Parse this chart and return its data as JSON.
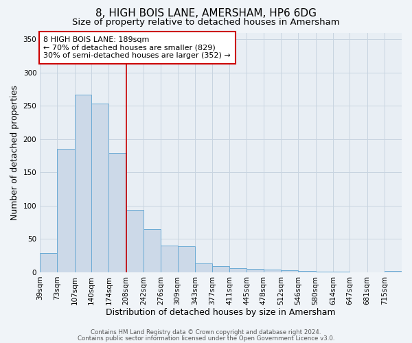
{
  "title": "8, HIGH BOIS LANE, AMERSHAM, HP6 6DG",
  "subtitle": "Size of property relative to detached houses in Amersham",
  "xlabel": "Distribution of detached houses by size in Amersham",
  "ylabel": "Number of detached properties",
  "bar_heights": [
    29,
    185,
    267,
    253,
    179,
    94,
    65,
    40,
    39,
    13,
    9,
    6,
    5,
    4,
    3,
    2,
    1,
    1,
    0,
    0,
    2
  ],
  "bin_edges": [
    39,
    73,
    107,
    140,
    174,
    208,
    242,
    276,
    309,
    343,
    377,
    411,
    445,
    478,
    512,
    546,
    580,
    614,
    647,
    681,
    715,
    749
  ],
  "xtick_labels": [
    "39sqm",
    "73sqm",
    "107sqm",
    "140sqm",
    "174sqm",
    "208sqm",
    "242sqm",
    "276sqm",
    "309sqm",
    "343sqm",
    "377sqm",
    "411sqm",
    "445sqm",
    "478sqm",
    "512sqm",
    "546sqm",
    "580sqm",
    "614sqm",
    "647sqm",
    "681sqm",
    "715sqm"
  ],
  "bar_facecolor": "#ccd9e8",
  "bar_edgecolor": "#6aaad4",
  "grid_color": "#c8d4e0",
  "plot_background": "#e8eef4",
  "fig_background": "#f0f4f8",
  "property_line_x": 208,
  "property_line_color": "#cc0000",
  "annotation_text": "8 HIGH BOIS LANE: 189sqm\n← 70% of detached houses are smaller (829)\n30% of semi-detached houses are larger (352) →",
  "annotation_box_color": "#cc0000",
  "ylim": [
    0,
    360
  ],
  "yticks": [
    0,
    50,
    100,
    150,
    200,
    250,
    300,
    350
  ],
  "footer_line1": "Contains HM Land Registry data © Crown copyright and database right 2024.",
  "footer_line2": "Contains public sector information licensed under the Open Government Licence v3.0.",
  "title_fontsize": 11,
  "subtitle_fontsize": 9.5,
  "axis_label_fontsize": 9,
  "tick_fontsize": 7.5,
  "annotation_fontsize": 8,
  "footer_fontsize": 6.2
}
